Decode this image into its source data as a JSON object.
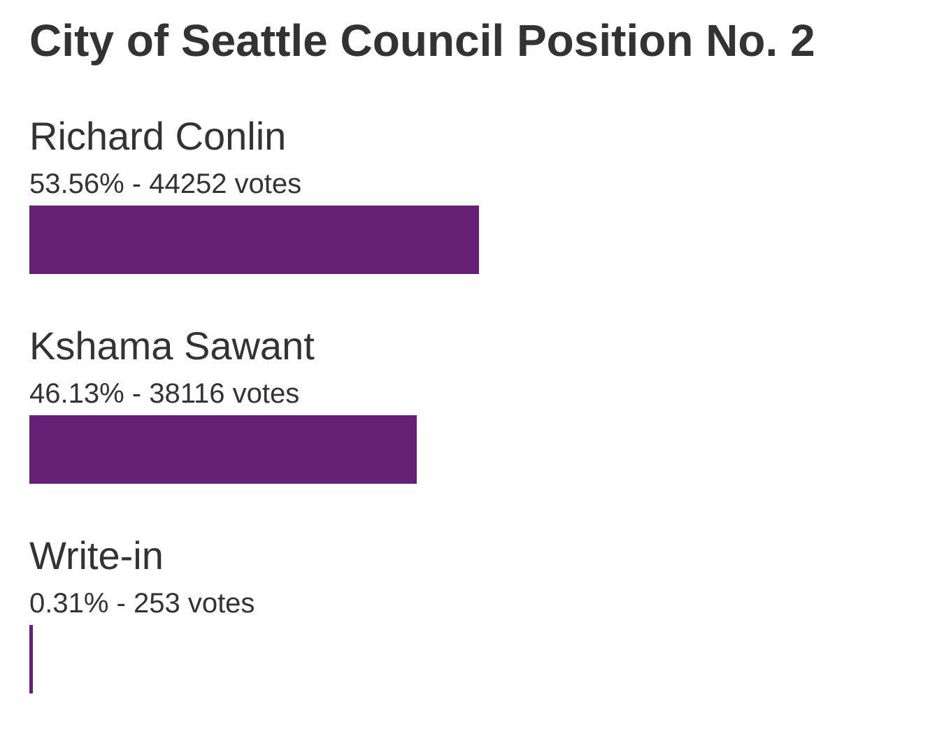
{
  "title": "City of Seattle Council Position No. 2",
  "bar_color": "#662074",
  "candidates": [
    {
      "name": "Richard Conlin",
      "stats": "53.56% - 44252 votes"
    },
    {
      "name": "Kshama Sawant",
      "stats": "46.13% - 38116 votes"
    },
    {
      "name": "Write-in",
      "stats": "0.31% - 253 votes"
    }
  ],
  "chart_data": {
    "type": "bar",
    "orientation": "horizontal",
    "title": "City of Seattle Council Position No. 2",
    "categories": [
      "Richard Conlin",
      "Kshama Sawant",
      "Write-in"
    ],
    "values": [
      53.56,
      46.13,
      0.31
    ],
    "votes": [
      44252,
      38116,
      253
    ],
    "unit": "%",
    "xlim": [
      0,
      100
    ],
    "grid": false,
    "legend": "none"
  }
}
